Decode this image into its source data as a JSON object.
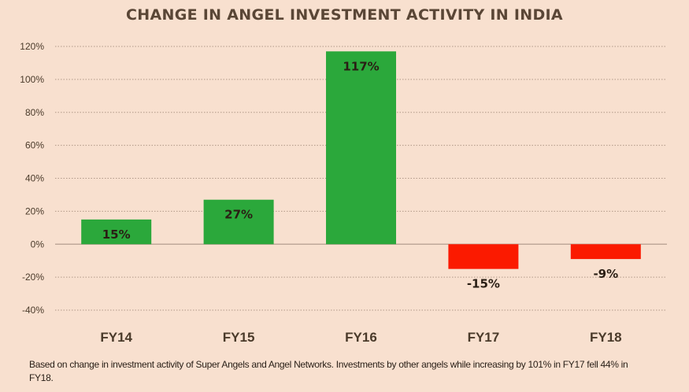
{
  "chart_data": {
    "type": "bar",
    "title": "CHANGE IN ANGEL INVESTMENT ACTIVITY IN INDIA",
    "xlabel": "",
    "ylabel": "",
    "categories": [
      "FY14",
      "FY15",
      "FY16",
      "FY17",
      "FY18"
    ],
    "values": [
      15,
      27,
      117,
      -15,
      -9
    ],
    "data_labels": [
      "15%",
      "27%",
      "117%",
      "-15%",
      "-9%"
    ],
    "ylim": [
      -40,
      120
    ],
    "yticks": [
      120,
      100,
      80,
      60,
      40,
      20,
      0,
      -20,
      -40
    ],
    "ytick_labels": [
      "120%",
      "100%",
      "80%",
      "60%",
      "40%",
      "20%",
      "0%",
      "-20%",
      "-40%"
    ],
    "grid": true,
    "legend": "none",
    "colors": {
      "positive": "#2BA83B",
      "negative": "#FB1A00"
    }
  },
  "footnote": "Based on change in investment activity  of Super Angels and Angel Networks. Investments by other angels while increasing by 101% in FY17 fell 44% in FY18."
}
